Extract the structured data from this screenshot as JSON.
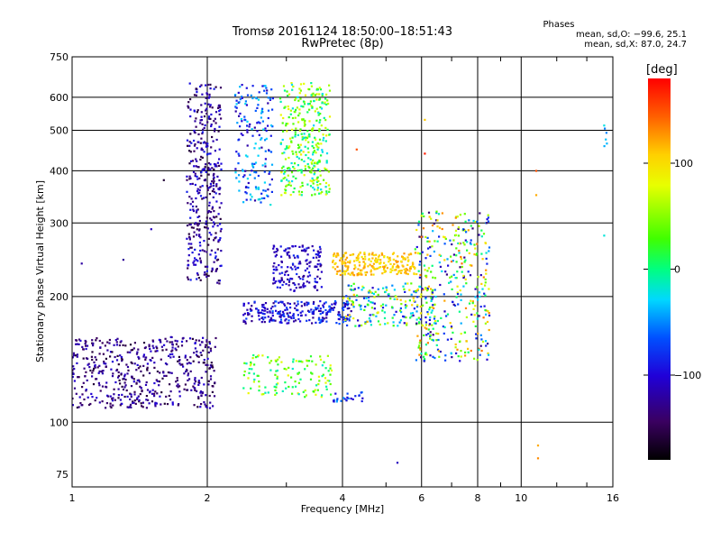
{
  "header": {
    "title_line1": "Tromsø 20161124 18:50:00–18:51:43",
    "title_line2": "RwPretec (8p)",
    "phases_title": "Phases",
    "phases_o": "mean, sd,O:  −99.6, 25.1",
    "phases_x": "mean, sd,X:  87.0, 24.7"
  },
  "colorbar": {
    "unit_label": "[deg]",
    "ticks": [
      {
        "value": 100,
        "label": "100"
      },
      {
        "value": 0,
        "label": "0"
      },
      {
        "value": -100,
        "label": "−100"
      }
    ],
    "range": [
      -180,
      180
    ]
  },
  "chart_data": {
    "type": "scatter",
    "title": "Tromsø 20161124 18:50:00–18:51:43",
    "subtitle": "RwPretec (8p)",
    "xlabel": "Frequency [MHz]",
    "ylabel": "Stationary phase Virtual Height [km]",
    "xscale": "log",
    "yscale": "log",
    "xlim": [
      1,
      16
    ],
    "ylim": [
      70,
      750
    ],
    "x_ticks": [
      {
        "value": 1,
        "label": "1"
      },
      {
        "value": 2,
        "label": "2"
      },
      {
        "value": 4,
        "label": "4"
      },
      {
        "value": 6,
        "label": "6"
      },
      {
        "value": 8,
        "label": "8"
      },
      {
        "value": 10,
        "label": "10"
      },
      {
        "value": 16,
        "label": "16"
      }
    ],
    "y_ticks": [
      {
        "value": 75,
        "label": "75"
      },
      {
        "value": 100,
        "label": "100"
      },
      {
        "value": 200,
        "label": "200"
      },
      {
        "value": 300,
        "label": "300"
      },
      {
        "value": 400,
        "label": "400"
      },
      {
        "value": 500,
        "label": "500"
      },
      {
        "value": 600,
        "label": "600"
      },
      {
        "value": 750,
        "label": "750"
      }
    ],
    "grid": true,
    "color_variable": "phase (deg)",
    "clusters": [
      {
        "x": [
          1.0,
          2.1
        ],
        "y": [
          108,
          160
        ],
        "phase": [
          -160,
          -100
        ],
        "count": 520
      },
      {
        "x": [
          1.8,
          2.15
        ],
        "y": [
          215,
          650
        ],
        "phase": [
          -160,
          -85
        ],
        "count": 380
      },
      {
        "x": [
          2.3,
          2.8
        ],
        "y": [
          330,
          650
        ],
        "phase": [
          -120,
          -20
        ],
        "count": 170
      },
      {
        "x": [
          2.9,
          3.75
        ],
        "y": [
          350,
          650
        ],
        "phase": [
          -30,
          90
        ],
        "count": 340
      },
      {
        "x": [
          2.4,
          3.8
        ],
        "y": [
          115,
          145
        ],
        "phase": [
          -20,
          90
        ],
        "count": 130
      },
      {
        "x": [
          2.4,
          4.2
        ],
        "y": [
          172,
          195
        ],
        "phase": [
          -130,
          -60
        ],
        "count": 260
      },
      {
        "x": [
          2.8,
          3.6
        ],
        "y": [
          205,
          265
        ],
        "phase": [
          -130,
          -80
        ],
        "count": 160
      },
      {
        "x": [
          3.8,
          5.8
        ],
        "y": [
          225,
          255
        ],
        "phase": [
          90,
          130
        ],
        "count": 230
      },
      {
        "x": [
          4.0,
          6.4
        ],
        "y": [
          170,
          215
        ],
        "phase": [
          -110,
          120
        ],
        "count": 200
      },
      {
        "x": [
          5.8,
          8.5
        ],
        "y": [
          140,
          320
        ],
        "phase": [
          -140,
          140
        ],
        "count": 380
      },
      {
        "x": [
          3.8,
          4.6
        ],
        "y": [
          112,
          118
        ],
        "phase": [
          -120,
          -40
        ],
        "count": 25
      },
      {
        "x": [
          15.3,
          15.6
        ],
        "y": [
          450,
          540
        ],
        "phase": [
          -60,
          -20
        ],
        "count": 6
      }
    ],
    "points": [
      {
        "x": 1.05,
        "y": 240,
        "phase": -120
      },
      {
        "x": 1.3,
        "y": 245,
        "phase": -125
      },
      {
        "x": 1.5,
        "y": 290,
        "phase": -110
      },
      {
        "x": 1.6,
        "y": 380,
        "phase": -160
      },
      {
        "x": 10.8,
        "y": 400,
        "phase": 150
      },
      {
        "x": 10.8,
        "y": 350,
        "phase": 120
      },
      {
        "x": 10.9,
        "y": 88,
        "phase": 120
      },
      {
        "x": 10.9,
        "y": 82,
        "phase": 130
      },
      {
        "x": 5.3,
        "y": 80,
        "phase": -110
      },
      {
        "x": 6.1,
        "y": 440,
        "phase": 170
      },
      {
        "x": 6.1,
        "y": 530,
        "phase": 110
      },
      {
        "x": 15.3,
        "y": 280,
        "phase": -20
      },
      {
        "x": 4.3,
        "y": 450,
        "phase": 150
      }
    ]
  }
}
